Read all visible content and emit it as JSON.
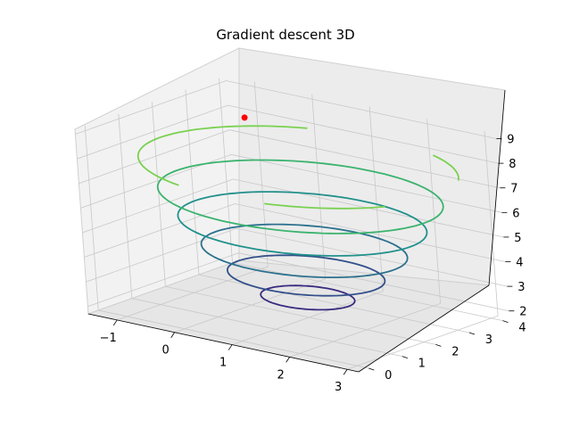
{
  "chart_data": {
    "type": "line3d",
    "title": "Gradient descent 3D",
    "x_ticks": [
      "−1",
      "0",
      "1",
      "2",
      "3"
    ],
    "y_ticks": [
      "0",
      "1",
      "2",
      "3",
      "4"
    ],
    "z_ticks": [
      "2",
      "3",
      "4",
      "5",
      "6",
      "7",
      "8",
      "9"
    ],
    "xlim": [
      -1.5,
      3.2
    ],
    "ylim": [
      -0.3,
      4.2
    ],
    "zlim": [
      1.7,
      9.2
    ],
    "grid": true,
    "series": [
      {
        "kind": "contour",
        "level": 2.5,
        "color": "#3b2b80"
      },
      {
        "kind": "contour",
        "level": 3.4,
        "color": "#33508a"
      },
      {
        "kind": "contour",
        "level": 4.4,
        "color": "#2c718e"
      },
      {
        "kind": "contour",
        "level": 5.5,
        "color": "#22918c"
      },
      {
        "kind": "contour",
        "level": 6.6,
        "color": "#3bb36e"
      },
      {
        "kind": "contour",
        "level": 7.8,
        "color": "#7ad151"
      },
      {
        "kind": "point",
        "x": -1.1,
        "y": 4.0,
        "z": 7.8,
        "color": "#ff0000"
      }
    ]
  }
}
